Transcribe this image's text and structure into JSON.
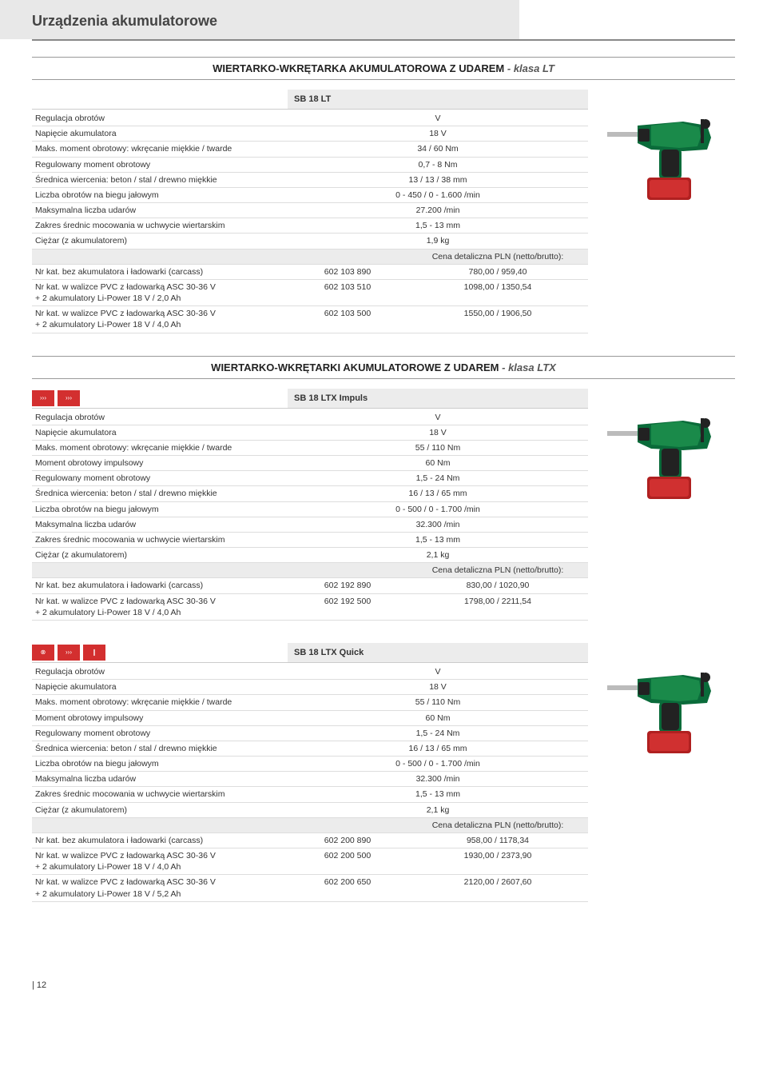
{
  "page_title": "Urządzenia akumulatorowe",
  "page_number": "| 12",
  "price_header": "Cena detaliczna PLN (netto/brutto):",
  "sections": [
    {
      "title_bold": "WIERTARKO-WKRĘTARKA AKUMULATOROWA Z UDAREM",
      "title_italic": " - klasa LT",
      "products": [
        {
          "model": "SB 18 LT",
          "has_icons": false,
          "specs": [
            {
              "label": "Regulacja obrotów",
              "value": "V"
            },
            {
              "label": "Napięcie akumulatora",
              "value": "18 V"
            },
            {
              "label": "Maks. moment obrotowy: wkręcanie miękkie / twarde",
              "value": "34 / 60 Nm"
            },
            {
              "label": "Regulowany moment obrotowy",
              "value": "0,7 - 8 Nm"
            },
            {
              "label": "Średnica wiercenia: beton / stal / drewno miękkie",
              "value": "13 / 13 / 38 mm"
            },
            {
              "label": "Liczba obrotów na biegu jałowym",
              "value": "0 - 450 / 0 - 1.600 /min"
            },
            {
              "label": "Maksymalna liczba udarów",
              "value": "27.200 /min"
            },
            {
              "label": "Zakres średnic mocowania w uchwycie wiertarskim",
              "value": "1,5 - 13 mm"
            },
            {
              "label": "Ciężar (z akumulatorem)",
              "value": "1,9 kg"
            }
          ],
          "orders": [
            {
              "label": "Nr kat. bez akumulatora i ładowarki (carcass)",
              "sku": "602 103 890",
              "price": "780,00 / 959,40"
            },
            {
              "label": "Nr kat. w walizce PVC z ładowarką ASC 30-36 V\n+ 2 akumulatory Li-Power 18 V / 2,0 Ah",
              "sku": "602 103 510",
              "price": "1098,00 / 1350,54"
            },
            {
              "label": "Nr kat. w walizce PVC z ładowarką ASC 30-36 V\n+ 2 akumulatory Li-Power 18 V / 4,0 Ah",
              "sku": "602 103 500",
              "price": "1550,00 / 1906,50"
            }
          ]
        }
      ]
    },
    {
      "title_bold": "WIERTARKO-WKRĘTARKI AKUMULATOROWE Z UDAREM",
      "title_italic": " - klasa LTX",
      "products": [
        {
          "model": "SB 18 LTX Impuls",
          "has_icons": true,
          "icon_count": 2,
          "specs": [
            {
              "label": "Regulacja obrotów",
              "value": "V"
            },
            {
              "label": "Napięcie akumulatora",
              "value": "18 V"
            },
            {
              "label": "Maks. moment obrotowy: wkręcanie miękkie / twarde",
              "value": "55 / 110 Nm"
            },
            {
              "label": "Moment obrotowy impulsowy",
              "value": "60 Nm"
            },
            {
              "label": "Regulowany moment obrotowy",
              "value": "1,5 - 24 Nm"
            },
            {
              "label": "Średnica wiercenia: beton / stal / drewno miękkie",
              "value": "16 / 13 / 65 mm"
            },
            {
              "label": "Liczba obrotów na biegu jałowym",
              "value": "0 - 500 / 0 - 1.700 /min"
            },
            {
              "label": "Maksymalna liczba udarów",
              "value": "32.300 /min"
            },
            {
              "label": "Zakres średnic mocowania w uchwycie wiertarskim",
              "value": "1,5 - 13 mm"
            },
            {
              "label": "Ciężar (z akumulatorem)",
              "value": "2,1 kg"
            }
          ],
          "orders": [
            {
              "label": "Nr kat. bez akumulatora i ładowarki (carcass)",
              "sku": "602 192 890",
              "price": "830,00 / 1020,90"
            },
            {
              "label": "Nr kat. w walizce PVC z ładowarką ASC 30-36 V\n+ 2 akumulatory Li-Power 18 V / 4,0 Ah",
              "sku": "602 192 500",
              "price": "1798,00 / 2211,54"
            }
          ]
        },
        {
          "model": "SB 18 LTX Quick",
          "has_icons": true,
          "icon_count": 3,
          "specs": [
            {
              "label": "Regulacja obrotów",
              "value": "V"
            },
            {
              "label": "Napięcie akumulatora",
              "value": "18 V"
            },
            {
              "label": "Maks. moment obrotowy: wkręcanie miękkie / twarde",
              "value": "55 / 110 Nm"
            },
            {
              "label": "Moment obrotowy impulsowy",
              "value": "60 Nm"
            },
            {
              "label": "Regulowany moment obrotowy",
              "value": "1,5 - 24 Nm"
            },
            {
              "label": "Średnica wiercenia: beton / stal / drewno miękkie",
              "value": "16 / 13 / 65 mm"
            },
            {
              "label": "Liczba obrotów na biegu jałowym",
              "value": "0 - 500 / 0 - 1.700 /min"
            },
            {
              "label": "Maksymalna liczba udarów",
              "value": "32.300 /min"
            },
            {
              "label": "Zakres średnic mocowania w uchwycie wiertarskim",
              "value": "1,5 - 13 mm"
            },
            {
              "label": "Ciężar (z akumulatorem)",
              "value": "2,1 kg"
            }
          ],
          "orders": [
            {
              "label": "Nr kat. bez akumulatora i ładowarki (carcass)",
              "sku": "602 200 890",
              "price": "958,00 / 1178,34"
            },
            {
              "label": "Nr kat. w walizce PVC z ładowarką ASC 30-36 V\n+ 2 akumulatory Li-Power 18 V / 4,0 Ah",
              "sku": "602 200 500",
              "price": "1930,00 / 2373,90"
            },
            {
              "label": "Nr kat. w walizce PVC z ładowarką ASC 30-36 V\n+ 2 akumulatory Li-Power 18 V / 5,2 Ah",
              "sku": "602 200 650",
              "price": "2120,00 / 2607,60"
            }
          ]
        }
      ]
    }
  ]
}
